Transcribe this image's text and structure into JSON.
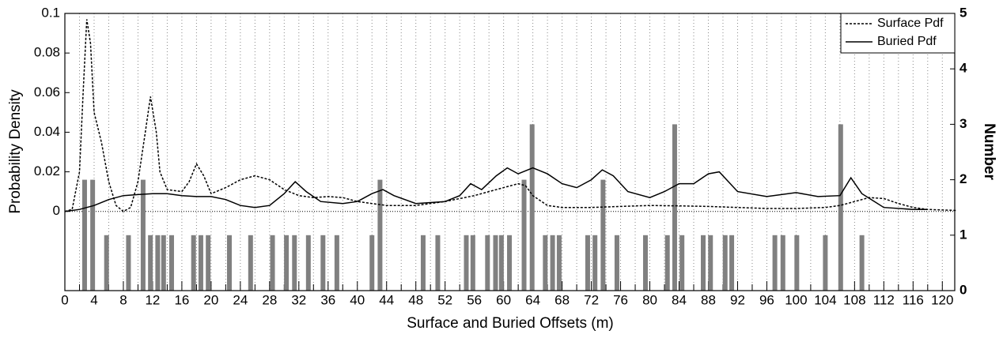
{
  "chart_data": {
    "type": "combo",
    "xlabel": "Surface and Buried Offsets (m)",
    "ylabel": "Probability Density",
    "y2label": "Number",
    "xlim": [
      0,
      121.7
    ],
    "xticks": [
      0,
      4,
      8,
      12,
      16,
      20,
      24,
      28,
      32,
      36,
      40,
      44,
      48,
      52,
      56,
      60,
      64,
      68,
      72,
      76,
      80,
      84,
      88,
      92,
      96,
      100,
      104,
      108,
      112,
      116,
      120
    ],
    "xminorticks": [
      2,
      6,
      10,
      14,
      18,
      22,
      26,
      30,
      34,
      38,
      42,
      46,
      50,
      54,
      58,
      62,
      66,
      70,
      74,
      78,
      82,
      86,
      90,
      94,
      98,
      102,
      106,
      110,
      114,
      118
    ],
    "ylim": [
      -0.04,
      0.1
    ],
    "yticks": [
      0,
      0.02,
      0.04,
      0.06,
      0.08,
      0.1
    ],
    "y2lim": [
      0,
      5
    ],
    "y2ticks": [
      0,
      1,
      2,
      3,
      4,
      5
    ],
    "grid": true,
    "legend": "upper right",
    "series": [
      {
        "name": "Surface Pdf",
        "color": "#000000",
        "dashed": true,
        "x": [
          0,
          1,
          2,
          2.5,
          3,
          3.5,
          4,
          5,
          6,
          7,
          8,
          9,
          10,
          11,
          11.7,
          12.5,
          13,
          14,
          16,
          17,
          18,
          19,
          20,
          22,
          24,
          26,
          28,
          30,
          32,
          34,
          36,
          38,
          40,
          42,
          44,
          48,
          52,
          56,
          58,
          60,
          62,
          63,
          64,
          66,
          68,
          72,
          76,
          80,
          84,
          88,
          92,
          96,
          100,
          104,
          106,
          108,
          110,
          112,
          114,
          116,
          118,
          122
        ],
        "values": [
          0,
          0.001,
          0.02,
          0.06,
          0.097,
          0.085,
          0.05,
          0.035,
          0.015,
          0.003,
          0,
          0.002,
          0.015,
          0.04,
          0.058,
          0.04,
          0.02,
          0.011,
          0.01,
          0.015,
          0.024,
          0.018,
          0.009,
          0.012,
          0.016,
          0.018,
          0.016,
          0.011,
          0.008,
          0.007,
          0.0075,
          0.007,
          0.005,
          0.004,
          0.003,
          0.003,
          0.005,
          0.008,
          0.01,
          0.012,
          0.014,
          0.013,
          0.008,
          0.003,
          0.002,
          0.002,
          0.0025,
          0.003,
          0.0028,
          0.0025,
          0.002,
          0.0015,
          0.0015,
          0.002,
          0.003,
          0.005,
          0.007,
          0.0065,
          0.004,
          0.002,
          0.001,
          0.0005
        ]
      },
      {
        "name": "Buried Pdf",
        "color": "#000000",
        "dashed": false,
        "x": [
          0,
          2,
          4,
          6,
          8,
          10,
          12,
          14,
          16,
          18,
          20,
          22,
          24,
          26,
          28,
          30,
          31.5,
          33,
          35,
          38,
          40,
          42,
          43.5,
          45,
          48,
          52,
          54,
          55.5,
          57,
          59,
          60.5,
          62,
          64,
          66,
          68,
          70,
          72,
          73.5,
          75,
          77,
          80,
          82,
          84,
          86,
          88,
          89.5,
          92,
          96,
          100,
          103,
          106,
          107.5,
          109,
          112,
          116,
          118
        ],
        "values": [
          0,
          0.001,
          0.003,
          0.006,
          0.008,
          0.0085,
          0.009,
          0.009,
          0.008,
          0.0075,
          0.0075,
          0.006,
          0.003,
          0.002,
          0.003,
          0.009,
          0.015,
          0.01,
          0.005,
          0.004,
          0.005,
          0.009,
          0.011,
          0.008,
          0.004,
          0.005,
          0.008,
          0.014,
          0.011,
          0.018,
          0.022,
          0.019,
          0.022,
          0.019,
          0.014,
          0.012,
          0.016,
          0.021,
          0.018,
          0.01,
          0.007,
          0.01,
          0.014,
          0.014,
          0.019,
          0.02,
          0.01,
          0.0075,
          0.0095,
          0.0075,
          0.008,
          0.017,
          0.009,
          0.002,
          0.001,
          0.001
        ]
      }
    ],
    "bars": {
      "axis": "y2",
      "color": "#808080",
      "x": [
        2.7,
        3.8,
        5.7,
        8.7,
        10.7,
        11.7,
        12.7,
        13.5,
        14.6,
        17.6,
        18.6,
        19.6,
        22.5,
        25.4,
        28.4,
        30.3,
        31.4,
        33.3,
        35.3,
        37.2,
        42,
        43.1,
        49,
        51,
        54.9,
        55.8,
        57.8,
        58.9,
        59.7,
        60.8,
        62.8,
        63.9,
        65.7,
        66.7,
        67.6,
        71.5,
        72.5,
        73.6,
        75.5,
        79.4,
        82.4,
        83.4,
        84.4,
        87.3,
        88.3,
        90.3,
        91.2,
        97.1,
        98.2,
        100.1,
        104,
        106.1,
        109
      ],
      "values": [
        2,
        2,
        1,
        1,
        2,
        1,
        1,
        1,
        1,
        1,
        1,
        1,
        1,
        1,
        1,
        1,
        1,
        1,
        1,
        1,
        1,
        2,
        1,
        1,
        1,
        1,
        1,
        1,
        1,
        1,
        2,
        3,
        1,
        1,
        1,
        1,
        1,
        2,
        1,
        1,
        1,
        3,
        1,
        1,
        1,
        1,
        1,
        1,
        1,
        1,
        1,
        3,
        1
      ]
    }
  }
}
